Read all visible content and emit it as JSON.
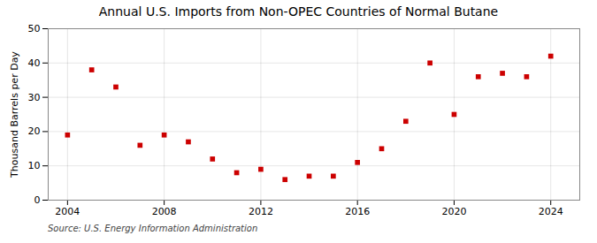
{
  "chart_data": {
    "type": "scatter",
    "title": "Annual U.S. Imports from Non-OPEC Countries of Normal Butane",
    "ylabel": "Thousand Barrels per Day",
    "source": "Source: U.S. Energy Information Administration",
    "x": [
      2004,
      2005,
      2006,
      2007,
      2008,
      2009,
      2010,
      2011,
      2012,
      2013,
      2014,
      2015,
      2016,
      2017,
      2018,
      2019,
      2020,
      2021,
      2022,
      2023,
      2024
    ],
    "values": [
      19,
      38,
      33,
      16,
      19,
      17,
      12,
      8,
      9,
      6,
      7,
      7,
      11,
      15,
      23,
      40,
      25,
      36,
      37,
      36,
      42
    ],
    "color": "#cc0000",
    "marker": "square",
    "xlim": [
      2003.2,
      2025.2
    ],
    "ylim": [
      0,
      50
    ],
    "xticks": [
      2004,
      2008,
      2012,
      2016,
      2020,
      2024
    ],
    "yticks": [
      0,
      10,
      20,
      30,
      40,
      50
    ],
    "grid": true
  }
}
